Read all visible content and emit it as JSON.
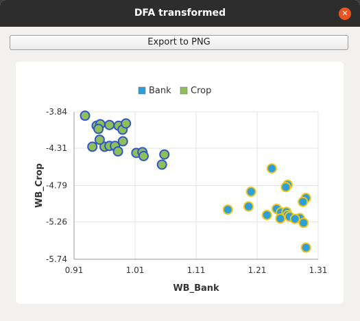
{
  "window": {
    "title": "DFA transformed",
    "close_icon": "close-icon",
    "accent": "#e95420"
  },
  "toolbar": {
    "export_label": "Export to PNG"
  },
  "chart_data": {
    "type": "scatter",
    "xlabel": "WB_Bank",
    "ylabel": "WB_Crop",
    "xlim": [
      0.91,
      1.31
    ],
    "ylim": [
      -5.74,
      -3.84
    ],
    "xticks": [
      "0.91",
      "1.01",
      "1.11",
      "1.21",
      "1.31"
    ],
    "yticks": [
      "-3.84",
      "-4.31",
      "-4.79",
      "-5.26",
      "-5.74"
    ],
    "grid": true,
    "legend": "top-center",
    "series": [
      {
        "name": "Bank",
        "fill": "#2f9fd8",
        "edge": "#f0c419",
        "points": [
          [
            1.234,
            -4.57
          ],
          [
            1.26,
            -4.78
          ],
          [
            1.257,
            -4.81
          ],
          [
            1.29,
            -4.95
          ],
          [
            1.285,
            -5.0
          ],
          [
            1.2,
            -4.87
          ],
          [
            1.196,
            -5.06
          ],
          [
            1.162,
            -5.1
          ],
          [
            1.242,
            -5.09
          ],
          [
            1.249,
            -5.135
          ],
          [
            1.258,
            -5.13
          ],
          [
            1.26,
            -5.17
          ],
          [
            1.226,
            -5.17
          ],
          [
            1.263,
            -5.19
          ],
          [
            1.28,
            -5.21
          ],
          [
            1.248,
            -5.215
          ],
          [
            1.272,
            -5.22
          ],
          [
            1.286,
            -5.27
          ],
          [
            1.29,
            -5.59
          ]
        ]
      },
      {
        "name": "Crop",
        "fill": "#8fbf5a",
        "edge": "#2f55c9",
        "points": [
          [
            0.928,
            -3.89
          ],
          [
            0.947,
            -4.02
          ],
          [
            0.953,
            -4.0
          ],
          [
            0.968,
            -4.01
          ],
          [
            0.983,
            -4.02
          ],
          [
            0.9895,
            -4.07
          ],
          [
            0.995,
            -3.99
          ],
          [
            0.95,
            -4.06
          ],
          [
            0.94,
            -4.29
          ],
          [
            0.96,
            -4.29
          ],
          [
            0.952,
            -4.2
          ],
          [
            0.968,
            -4.28
          ],
          [
            0.977,
            -4.28
          ],
          [
            0.99,
            -4.22
          ],
          [
            0.982,
            -4.35
          ],
          [
            1.012,
            -4.37
          ],
          [
            1.022,
            -4.36
          ],
          [
            1.024,
            -4.41
          ],
          [
            1.058,
            -4.39
          ],
          [
            1.054,
            -4.52
          ]
        ]
      }
    ]
  }
}
